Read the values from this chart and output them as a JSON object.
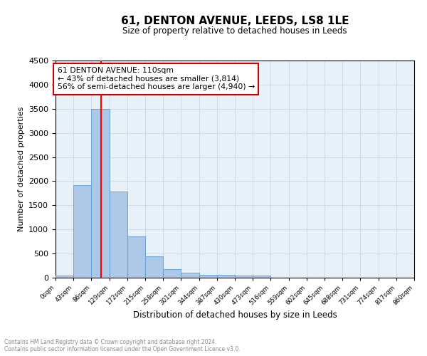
{
  "title": "61, DENTON AVENUE, LEEDS, LS8 1LE",
  "subtitle": "Size of property relative to detached houses in Leeds",
  "xlabel": "Distribution of detached houses by size in Leeds",
  "ylabel": "Number of detached properties",
  "annotation_line1": "61 DENTON AVENUE: 110sqm",
  "annotation_line2": "← 43% of detached houses are smaller (3,814)",
  "annotation_line3": "56% of semi-detached houses are larger (4,940) →",
  "footer_line1": "Contains HM Land Registry data © Crown copyright and database right 2024.",
  "footer_line2": "Contains public sector information licensed under the Open Government Licence v3.0.",
  "bin_edges": [
    0,
    43,
    86,
    129,
    172,
    215,
    258,
    301,
    344,
    387,
    430,
    473,
    516,
    559,
    602,
    645,
    688,
    731,
    774,
    817,
    860
  ],
  "bin_counts": [
    50,
    1920,
    3500,
    1780,
    850,
    450,
    170,
    105,
    65,
    55,
    45,
    50,
    0,
    0,
    0,
    0,
    0,
    0,
    0,
    0
  ],
  "bar_color": "#adc8e6",
  "bar_edge_color": "#5a9fd4",
  "grid_color": "#ccd9e8",
  "bg_color": "#e8f0f8",
  "red_line_x": 110,
  "ylim": [
    0,
    4500
  ],
  "xlim": [
    0,
    860
  ],
  "annotation_box_color": "#ffffff",
  "annotation_box_edge": "#cc0000",
  "yticks": [
    0,
    500,
    1000,
    1500,
    2000,
    2500,
    3000,
    3500,
    4000,
    4500
  ]
}
